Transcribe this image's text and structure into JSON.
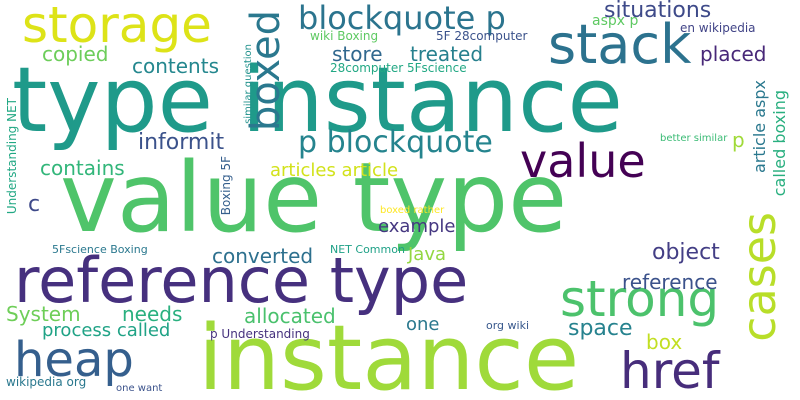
{
  "words": [
    {
      "text": "value type",
      "color": "#4fc46a"
    },
    {
      "text": "type instance",
      "color": "#1f9a8a"
    },
    {
      "text": "instance",
      "color": "#9fda3a"
    },
    {
      "text": "reference type",
      "color": "#46307e"
    },
    {
      "text": "storage",
      "color": "#dde318"
    },
    {
      "text": "stack",
      "color": "#2c728e"
    },
    {
      "text": "value",
      "color": "#440154"
    },
    {
      "text": "strong",
      "color": "#4cc26c"
    },
    {
      "text": "heap",
      "color": "#355f8d"
    },
    {
      "text": "href",
      "color": "#472d7b"
    },
    {
      "text": "cases",
      "color": "#b8de29"
    },
    {
      "text": "boxed",
      "color": "#2a788e"
    },
    {
      "text": "blockquote p",
      "color": "#2b748e"
    },
    {
      "text": "p blockquote",
      "color": "#25848e"
    },
    {
      "text": "situations",
      "color": "#3e4a89"
    },
    {
      "text": "copied",
      "color": "#6ccd5a"
    },
    {
      "text": "store",
      "color": "#31688e"
    },
    {
      "text": "treated",
      "color": "#27808e"
    },
    {
      "text": "placed",
      "color": "#482878"
    },
    {
      "text": "contents",
      "color": "#24878e"
    },
    {
      "text": "informit",
      "color": "#3b528b"
    },
    {
      "text": "contains",
      "color": "#32b67a"
    },
    {
      "text": "articles article",
      "color": "#d2e21b"
    },
    {
      "text": "c",
      "color": "#3e4989"
    },
    {
      "text": "example",
      "color": "#453781"
    },
    {
      "text": "converted",
      "color": "#2d708e"
    },
    {
      "text": "Java",
      "color": "#93d741"
    },
    {
      "text": "object",
      "color": "#433e85"
    },
    {
      "text": "reference",
      "color": "#3b528b"
    },
    {
      "text": "System",
      "color": "#6ece58"
    },
    {
      "text": "needs",
      "color": "#2ab07f"
    },
    {
      "text": "allocated",
      "color": "#4ac16d"
    },
    {
      "text": "process called",
      "color": "#20a386"
    },
    {
      "text": "one",
      "color": "#2a788e"
    },
    {
      "text": "space",
      "color": "#26828e"
    },
    {
      "text": "box",
      "color": "#c2df23"
    },
    {
      "text": "p",
      "color": "#a0da39"
    },
    {
      "text": "aspx p",
      "color": "#5ec962"
    },
    {
      "text": "wiki Boxing",
      "color": "#5ec962"
    },
    {
      "text": "5F 28computer",
      "color": "#3b528b"
    },
    {
      "text": "en wikipedia",
      "color": "#414487"
    },
    {
      "text": "28computer 5Fscience",
      "color": "#22a884"
    },
    {
      "text": "better similar",
      "color": "#3bbb75"
    },
    {
      "text": "boxed rather",
      "color": "#fde725"
    },
    {
      "text": "5Fscience Boxing",
      "color": "#2a788e"
    },
    {
      "text": "NET Common",
      "color": "#1fa187"
    },
    {
      "text": "p Understanding",
      "color": "#46327e"
    },
    {
      "text": "org wiki",
      "color": "#38588c"
    },
    {
      "text": "wikipedia org",
      "color": "#2a788e"
    },
    {
      "text": "one want",
      "color": "#3b528b"
    },
    {
      "text": "similar question",
      "color": "#21918c"
    },
    {
      "text": "Understanding NET",
      "color": "#22a884"
    },
    {
      "text": "Boxing 5F",
      "color": "#355f8d"
    },
    {
      "text": "article aspx",
      "color": "#2a788e"
    },
    {
      "text": "called boxing",
      "color": "#29af7f"
    }
  ]
}
